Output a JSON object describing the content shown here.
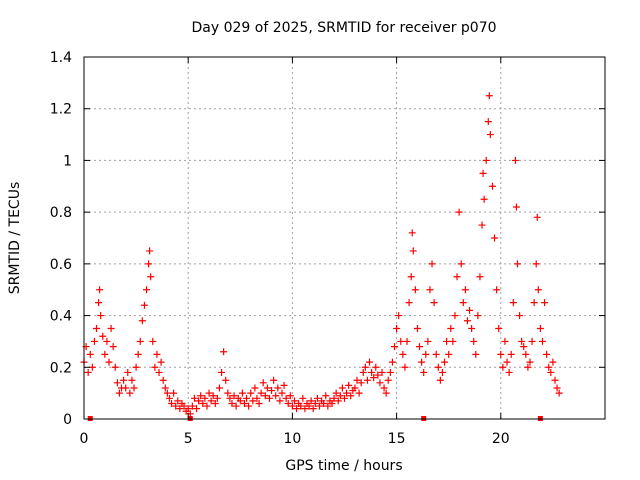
{
  "chart_data": {
    "type": "scatter",
    "title": "Day 029 of 2025, SRMTID for receiver p070",
    "xlabel": "GPS time / hours",
    "ylabel": "SRMTID / TECUs",
    "xlim": [
      0,
      25
    ],
    "ylim": [
      0,
      1.4
    ],
    "x_ticks": [
      0,
      5,
      10,
      15,
      20
    ],
    "x_tick_labels": [
      "0",
      "5",
      "10",
      "15",
      "20"
    ],
    "y_ticks": [
      0,
      0.2,
      0.4,
      0.6,
      0.8,
      1.0,
      1.2,
      1.4
    ],
    "y_tick_labels": [
      "0",
      "0.2",
      "0.4",
      "0.6",
      "0.8",
      "1",
      "1.2",
      "1.4"
    ],
    "grid": true,
    "marker": "+",
    "color": "#ff0000",
    "baseline_markers_x": [
      0.3,
      5.1,
      16.3,
      21.9
    ],
    "series": [
      {
        "name": "SRMTID",
        "points": [
          [
            0.0,
            0.22
          ],
          [
            0.1,
            0.28
          ],
          [
            0.2,
            0.18
          ],
          [
            0.3,
            0.25
          ],
          [
            0.4,
            0.2
          ],
          [
            0.5,
            0.3
          ],
          [
            0.6,
            0.35
          ],
          [
            0.7,
            0.45
          ],
          [
            0.75,
            0.5
          ],
          [
            0.8,
            0.4
          ],
          [
            0.9,
            0.32
          ],
          [
            1.0,
            0.25
          ],
          [
            1.1,
            0.3
          ],
          [
            1.2,
            0.22
          ],
          [
            1.3,
            0.35
          ],
          [
            1.4,
            0.28
          ],
          [
            1.5,
            0.2
          ],
          [
            1.6,
            0.14
          ],
          [
            1.7,
            0.1
          ],
          [
            1.8,
            0.12
          ],
          [
            1.9,
            0.15
          ],
          [
            2.0,
            0.12
          ],
          [
            2.1,
            0.18
          ],
          [
            2.2,
            0.1
          ],
          [
            2.3,
            0.15
          ],
          [
            2.4,
            0.12
          ],
          [
            2.5,
            0.2
          ],
          [
            2.6,
            0.25
          ],
          [
            2.7,
            0.3
          ],
          [
            2.8,
            0.38
          ],
          [
            2.9,
            0.44
          ],
          [
            3.0,
            0.5
          ],
          [
            3.1,
            0.6
          ],
          [
            3.15,
            0.65
          ],
          [
            3.2,
            0.55
          ],
          [
            3.3,
            0.3
          ],
          [
            3.4,
            0.2
          ],
          [
            3.5,
            0.25
          ],
          [
            3.6,
            0.18
          ],
          [
            3.7,
            0.22
          ],
          [
            3.8,
            0.15
          ],
          [
            3.9,
            0.12
          ],
          [
            4.0,
            0.1
          ],
          [
            4.1,
            0.08
          ],
          [
            4.2,
            0.06
          ],
          [
            4.3,
            0.1
          ],
          [
            4.4,
            0.05
          ],
          [
            4.5,
            0.07
          ],
          [
            4.6,
            0.04
          ],
          [
            4.7,
            0.06
          ],
          [
            4.8,
            0.05
          ],
          [
            4.9,
            0.03
          ],
          [
            5.0,
            0.04
          ],
          [
            5.1,
            0.02
          ],
          [
            5.2,
            0.05
          ],
          [
            5.3,
            0.08
          ],
          [
            5.4,
            0.04
          ],
          [
            5.5,
            0.07
          ],
          [
            5.6,
            0.09
          ],
          [
            5.7,
            0.06
          ],
          [
            5.8,
            0.08
          ],
          [
            5.9,
            0.05
          ],
          [
            6.0,
            0.1
          ],
          [
            6.1,
            0.07
          ],
          [
            6.2,
            0.09
          ],
          [
            6.3,
            0.06
          ],
          [
            6.4,
            0.08
          ],
          [
            6.5,
            0.12
          ],
          [
            6.6,
            0.18
          ],
          [
            6.7,
            0.26
          ],
          [
            6.8,
            0.15
          ],
          [
            6.9,
            0.1
          ],
          [
            7.0,
            0.08
          ],
          [
            7.1,
            0.06
          ],
          [
            7.2,
            0.09
          ],
          [
            7.3,
            0.05
          ],
          [
            7.4,
            0.08
          ],
          [
            7.5,
            0.07
          ],
          [
            7.6,
            0.1
          ],
          [
            7.7,
            0.06
          ],
          [
            7.8,
            0.08
          ],
          [
            7.9,
            0.05
          ],
          [
            8.0,
            0.1
          ],
          [
            8.1,
            0.07
          ],
          [
            8.2,
            0.12
          ],
          [
            8.3,
            0.08
          ],
          [
            8.4,
            0.06
          ],
          [
            8.5,
            0.1
          ],
          [
            8.6,
            0.14
          ],
          [
            8.7,
            0.09
          ],
          [
            8.8,
            0.12
          ],
          [
            8.9,
            0.08
          ],
          [
            9.0,
            0.11
          ],
          [
            9.1,
            0.15
          ],
          [
            9.2,
            0.09
          ],
          [
            9.3,
            0.12
          ],
          [
            9.4,
            0.07
          ],
          [
            9.5,
            0.1
          ],
          [
            9.6,
            0.13
          ],
          [
            9.7,
            0.08
          ],
          [
            9.8,
            0.06
          ],
          [
            9.9,
            0.09
          ],
          [
            10.0,
            0.05
          ],
          [
            10.1,
            0.07
          ],
          [
            10.2,
            0.04
          ],
          [
            10.3,
            0.06
          ],
          [
            10.4,
            0.05
          ],
          [
            10.5,
            0.08
          ],
          [
            10.6,
            0.04
          ],
          [
            10.7,
            0.06
          ],
          [
            10.8,
            0.05
          ],
          [
            10.9,
            0.07
          ],
          [
            11.0,
            0.04
          ],
          [
            11.1,
            0.06
          ],
          [
            11.2,
            0.08
          ],
          [
            11.3,
            0.05
          ],
          [
            11.4,
            0.07
          ],
          [
            11.5,
            0.06
          ],
          [
            11.6,
            0.09
          ],
          [
            11.7,
            0.05
          ],
          [
            11.8,
            0.07
          ],
          [
            11.9,
            0.06
          ],
          [
            12.0,
            0.08
          ],
          [
            12.1,
            0.1
          ],
          [
            12.2,
            0.07
          ],
          [
            12.3,
            0.09
          ],
          [
            12.4,
            0.12
          ],
          [
            12.5,
            0.08
          ],
          [
            12.6,
            0.1
          ],
          [
            12.7,
            0.13
          ],
          [
            12.8,
            0.09
          ],
          [
            12.9,
            0.11
          ],
          [
            13.0,
            0.12
          ],
          [
            13.1,
            0.15
          ],
          [
            13.2,
            0.1
          ],
          [
            13.3,
            0.14
          ],
          [
            13.4,
            0.18
          ],
          [
            13.5,
            0.2
          ],
          [
            13.6,
            0.15
          ],
          [
            13.7,
            0.22
          ],
          [
            13.8,
            0.18
          ],
          [
            13.9,
            0.16
          ],
          [
            14.0,
            0.2
          ],
          [
            14.1,
            0.17
          ],
          [
            14.2,
            0.14
          ],
          [
            14.3,
            0.18
          ],
          [
            14.4,
            0.12
          ],
          [
            14.5,
            0.1
          ],
          [
            14.6,
            0.15
          ],
          [
            14.7,
            0.18
          ],
          [
            14.8,
            0.22
          ],
          [
            14.9,
            0.28
          ],
          [
            15.0,
            0.35
          ],
          [
            15.1,
            0.4
          ],
          [
            15.2,
            0.3
          ],
          [
            15.3,
            0.25
          ],
          [
            15.4,
            0.2
          ],
          [
            15.5,
            0.3
          ],
          [
            15.6,
            0.45
          ],
          [
            15.7,
            0.55
          ],
          [
            15.75,
            0.72
          ],
          [
            15.8,
            0.65
          ],
          [
            15.9,
            0.5
          ],
          [
            16.0,
            0.35
          ],
          [
            16.1,
            0.28
          ],
          [
            16.2,
            0.22
          ],
          [
            16.3,
            0.18
          ],
          [
            16.4,
            0.25
          ],
          [
            16.5,
            0.3
          ],
          [
            16.6,
            0.5
          ],
          [
            16.7,
            0.6
          ],
          [
            16.8,
            0.45
          ],
          [
            16.9,
            0.25
          ],
          [
            17.0,
            0.2
          ],
          [
            17.1,
            0.15
          ],
          [
            17.2,
            0.18
          ],
          [
            17.3,
            0.22
          ],
          [
            17.4,
            0.3
          ],
          [
            17.5,
            0.25
          ],
          [
            17.6,
            0.35
          ],
          [
            17.7,
            0.3
          ],
          [
            17.8,
            0.4
          ],
          [
            17.9,
            0.55
          ],
          [
            18.0,
            0.8
          ],
          [
            18.1,
            0.6
          ],
          [
            18.2,
            0.45
          ],
          [
            18.3,
            0.5
          ],
          [
            18.4,
            0.38
          ],
          [
            18.5,
            0.42
          ],
          [
            18.6,
            0.35
          ],
          [
            18.7,
            0.3
          ],
          [
            18.8,
            0.25
          ],
          [
            18.9,
            0.4
          ],
          [
            19.0,
            0.55
          ],
          [
            19.1,
            0.75
          ],
          [
            19.15,
            0.95
          ],
          [
            19.2,
            0.85
          ],
          [
            19.3,
            1.0
          ],
          [
            19.4,
            1.15
          ],
          [
            19.45,
            1.25
          ],
          [
            19.5,
            1.1
          ],
          [
            19.6,
            0.9
          ],
          [
            19.7,
            0.7
          ],
          [
            19.8,
            0.5
          ],
          [
            19.9,
            0.35
          ],
          [
            20.0,
            0.25
          ],
          [
            20.1,
            0.2
          ],
          [
            20.2,
            0.3
          ],
          [
            20.3,
            0.22
          ],
          [
            20.4,
            0.18
          ],
          [
            20.5,
            0.25
          ],
          [
            20.6,
            0.45
          ],
          [
            20.7,
            1.0
          ],
          [
            20.75,
            0.82
          ],
          [
            20.8,
            0.6
          ],
          [
            20.9,
            0.4
          ],
          [
            21.0,
            0.3
          ],
          [
            21.1,
            0.28
          ],
          [
            21.2,
            0.25
          ],
          [
            21.3,
            0.2
          ],
          [
            21.4,
            0.22
          ],
          [
            21.5,
            0.3
          ],
          [
            21.6,
            0.45
          ],
          [
            21.7,
            0.6
          ],
          [
            21.75,
            0.78
          ],
          [
            21.8,
            0.5
          ],
          [
            21.9,
            0.35
          ],
          [
            22.0,
            0.3
          ],
          [
            22.1,
            0.45
          ],
          [
            22.2,
            0.25
          ],
          [
            22.3,
            0.2
          ],
          [
            22.4,
            0.18
          ],
          [
            22.5,
            0.22
          ],
          [
            22.6,
            0.15
          ],
          [
            22.7,
            0.12
          ],
          [
            22.8,
            0.1
          ]
        ]
      }
    ]
  }
}
